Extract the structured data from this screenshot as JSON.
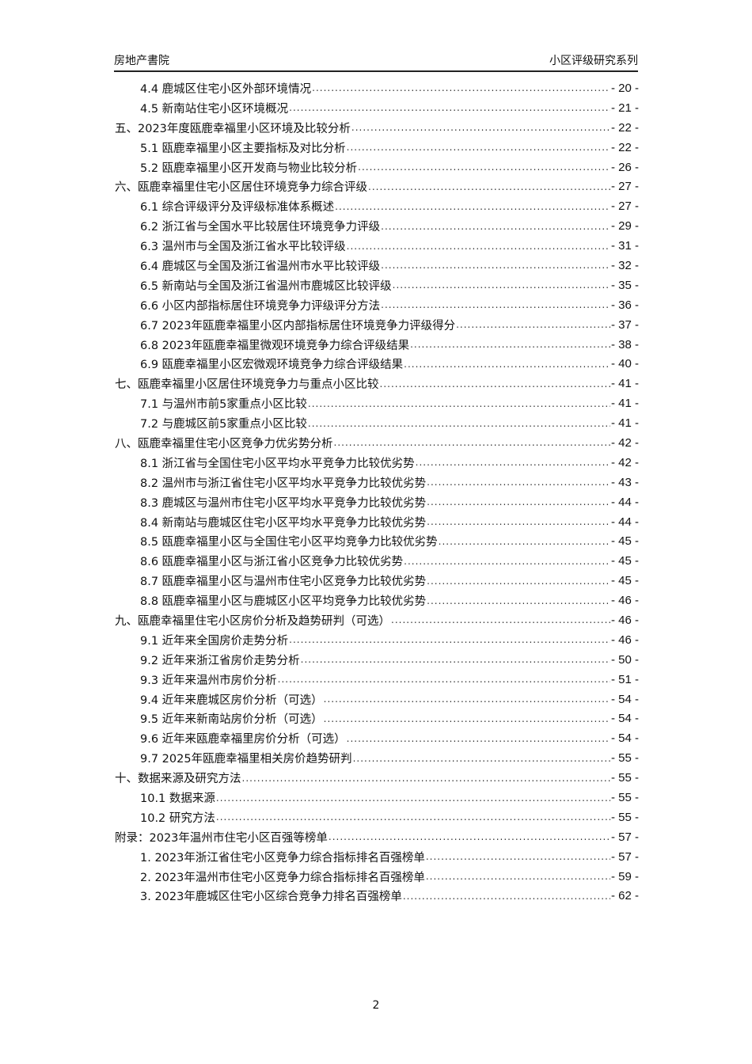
{
  "header": {
    "left": "房地产書院",
    "right": "小区评级研究系列"
  },
  "toc": [
    {
      "level": 2,
      "title": "4.4 鹿城区住宅小区外部环境情况",
      "page": "- 20 -"
    },
    {
      "level": 2,
      "title": "4.5 新南站住宅小区环境概况",
      "page": "- 21 -"
    },
    {
      "level": 1,
      "title": "五、2023年度瓯鹿幸福里小区环境及比较分析",
      "page": "- 22 -"
    },
    {
      "level": 2,
      "title": "5.1 瓯鹿幸福里小区主要指标及对比分析",
      "page": "- 22 -"
    },
    {
      "level": 2,
      "title": "5.2 瓯鹿幸福里小区开发商与物业比较分析",
      "page": "- 26 -"
    },
    {
      "level": 1,
      "title": "六、瓯鹿幸福里住宅小区居住环境竞争力综合评级",
      "page": "- 27 -"
    },
    {
      "level": 2,
      "title": "6.1 综合评级评分及评级标准体系概述",
      "page": "- 27 -"
    },
    {
      "level": 2,
      "title": "6.2 浙江省与全国水平比较居住环境竞争力评级",
      "page": "- 29 -"
    },
    {
      "level": 2,
      "title": "6.3 温州市与全国及浙江省水平比较评级",
      "page": "- 31 -"
    },
    {
      "level": 2,
      "title": "6.4 鹿城区与全国及浙江省温州市水平比较评级",
      "page": "- 32 -"
    },
    {
      "level": 2,
      "title": "6.5 新南站与全国及浙江省温州市鹿城区比较评级",
      "page": "- 35 -"
    },
    {
      "level": 2,
      "title": "6.6 小区内部指标居住环境竞争力评级评分方法",
      "page": "- 36 -"
    },
    {
      "level": 2,
      "title": "6.7 2023年瓯鹿幸福里小区内部指标居住环境竞争力评级得分",
      "page": "- 37 -"
    },
    {
      "level": 2,
      "title": "6.8 2023年瓯鹿幸福里微观环境竞争力综合评级结果",
      "page": "- 38 -"
    },
    {
      "level": 2,
      "title": "6.9 瓯鹿幸福里小区宏微观环境竞争力综合评级结果",
      "page": "- 40 -"
    },
    {
      "level": 1,
      "title": "七、瓯鹿幸福里小区居住环境竞争力与重点小区比较",
      "page": "- 41 -"
    },
    {
      "level": 2,
      "title": "7.1 与温州市前5家重点小区比较",
      "page": "- 41 -"
    },
    {
      "level": 2,
      "title": "7.2 与鹿城区前5家重点小区比较",
      "page": "- 41 -"
    },
    {
      "level": 1,
      "title": "八、瓯鹿幸福里住宅小区竞争力优劣势分析",
      "page": "- 42 -"
    },
    {
      "level": 2,
      "title": "8.1 浙江省与全国住宅小区平均水平竞争力比较优劣势",
      "page": "- 42 -"
    },
    {
      "level": 2,
      "title": "8.2 温州市与浙江省住宅小区平均水平竞争力比较优劣势",
      "page": "- 43 -"
    },
    {
      "level": 2,
      "title": "8.3 鹿城区与温州市住宅小区平均水平竞争力比较优劣势",
      "page": "- 44 -"
    },
    {
      "level": 2,
      "title": "8.4 新南站与鹿城区住宅小区平均水平竞争力比较优劣势",
      "page": "- 44 -"
    },
    {
      "level": 2,
      "title": "8.5 瓯鹿幸福里小区与全国住宅小区平均竞争力比较优劣势",
      "page": "- 45 -"
    },
    {
      "level": 2,
      "title": "8.6 瓯鹿幸福里小区与浙江省小区竞争力比较优劣势",
      "page": "- 45 -"
    },
    {
      "level": 2,
      "title": "8.7 瓯鹿幸福里小区与温州市住宅小区竞争力比较优劣势",
      "page": "- 45 -"
    },
    {
      "level": 2,
      "title": "8.8 瓯鹿幸福里小区与鹿城区小区平均竞争力比较优劣势",
      "page": "- 46 -"
    },
    {
      "level": 1,
      "title": "九、瓯鹿幸福里住宅小区房价分析及趋势研判（可选）",
      "page": "- 46 -"
    },
    {
      "level": 2,
      "title": "9.1 近年来全国房价走势分析",
      "page": "- 46 -"
    },
    {
      "level": 2,
      "title": "9.2 近年来浙江省房价走势分析",
      "page": "- 50 -"
    },
    {
      "level": 2,
      "title": "9.3 近年来温州市房价分析",
      "page": "- 51 -"
    },
    {
      "level": 2,
      "title": "9.4 近年来鹿城区房价分析（可选）",
      "page": "- 54 -"
    },
    {
      "level": 2,
      "title": "9.5 近年来新南站房价分析（可选）",
      "page": "- 54 -"
    },
    {
      "level": 2,
      "title": "9.6 近年来瓯鹿幸福里房价分析（可选）",
      "page": "- 54 -"
    },
    {
      "level": 2,
      "title": "9.7 2025年瓯鹿幸福里相关房价趋势研判",
      "page": "- 55 -"
    },
    {
      "level": 1,
      "title": "十、数据来源及研究方法",
      "page": "- 55 -"
    },
    {
      "level": 2,
      "title": "10.1 数据来源",
      "page": "- 55 -"
    },
    {
      "level": 2,
      "title": "10.2 研究方法",
      "page": "- 55 -"
    },
    {
      "level": 1,
      "title": "附录：2023年温州市住宅小区百强等榜单",
      "page": "- 57 -"
    },
    {
      "level": 2,
      "title": "1. 2023年浙江省住宅小区竞争力综合指标排名百强榜单",
      "page": "- 57 -"
    },
    {
      "level": 2,
      "title": "2. 2023年温州市住宅小区竞争力综合指标排名百强榜单",
      "page": "- 59 -"
    },
    {
      "level": 2,
      "title": "3. 2023年鹿城区住宅小区综合竞争力排名百强榜单",
      "page": "- 62 -"
    }
  ],
  "footer": {
    "page_number": "2"
  }
}
